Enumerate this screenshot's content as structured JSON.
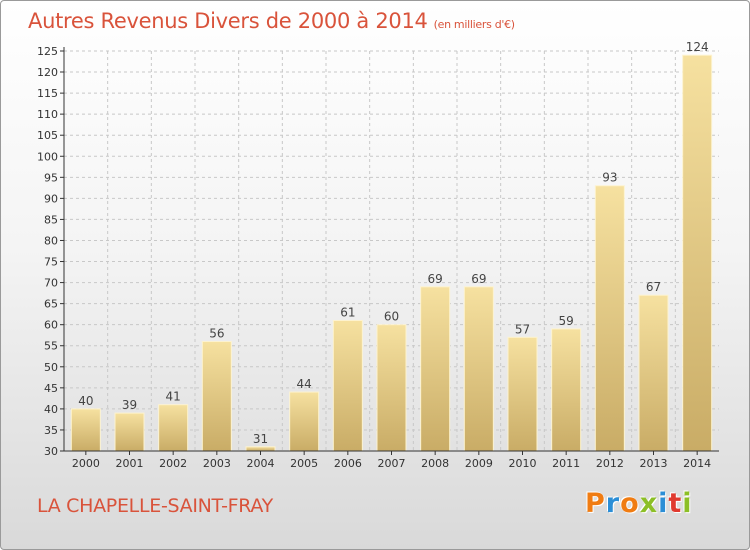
{
  "title": {
    "main": "Autres Revenus Divers de 2000 à 2014",
    "unit": "(en milliers d'€)"
  },
  "place": "LA CHAPELLE-SAINT-FRAY",
  "logo": {
    "text": "Proxiti",
    "letter_colors": [
      "#f07c12",
      "#2b8ed6",
      "#f07c12",
      "#8cbf26",
      "#2b8ed6",
      "#e03a2f",
      "#8cbf26"
    ]
  },
  "colors": {
    "title": "#d9533b",
    "bar_top": "#f6e1a0",
    "bar_bottom": "#c9ac66",
    "grid": "#c8c8c8",
    "axis": "#333333"
  },
  "chart_data": {
    "type": "bar",
    "title": "Autres Revenus Divers de 2000 à 2014",
    "xlabel": "",
    "ylabel": "",
    "categories": [
      "2000",
      "2001",
      "2002",
      "2003",
      "2004",
      "2005",
      "2006",
      "2007",
      "2008",
      "2009",
      "2010",
      "2011",
      "2012",
      "2013",
      "2014"
    ],
    "values": [
      40,
      39,
      41,
      56,
      31,
      44,
      61,
      60,
      69,
      69,
      57,
      59,
      93,
      67,
      124
    ],
    "ylim": [
      30,
      125
    ],
    "ytick_step": 5,
    "grid": true,
    "data_labels": true
  }
}
